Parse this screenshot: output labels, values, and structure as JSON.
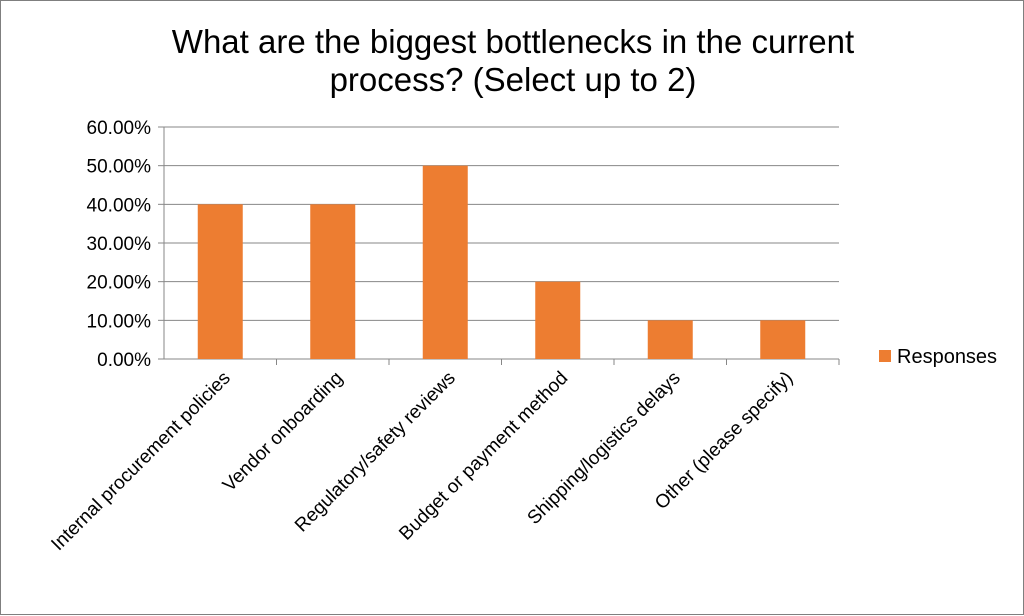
{
  "chart_data": {
    "type": "bar",
    "title_lines": [
      "What are the biggest bottlenecks in the current",
      "process? (Select up to 2)"
    ],
    "categories": [
      "Internal procurement policies",
      "Vendor onboarding",
      "Regulatory/safety reviews",
      "Budget or payment method",
      "Shipping/logistics delays",
      "Other (please specify)"
    ],
    "series": [
      {
        "name": "Responses",
        "values": [
          0.4,
          0.4,
          0.5,
          0.2,
          0.1,
          0.1
        ],
        "color": "#ed7d31"
      }
    ],
    "y_ticks": [
      "0.00%",
      "10.00%",
      "20.00%",
      "30.00%",
      "40.00%",
      "50.00%",
      "60.00%"
    ],
    "ylim": [
      0,
      0.6
    ],
    "grid": true,
    "legend_position": "right"
  }
}
